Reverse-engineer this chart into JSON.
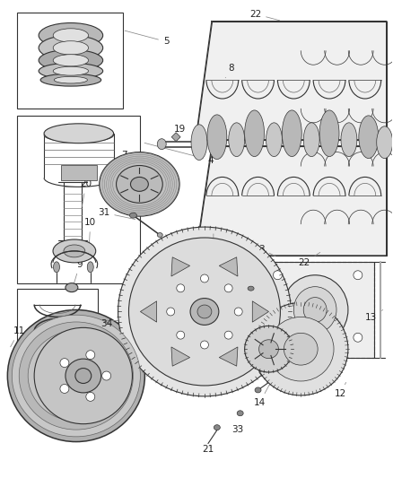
{
  "bg_color": "#ffffff",
  "lc": "#333333",
  "figsize": [
    4.38,
    5.33
  ],
  "dpi": 100,
  "label_fs": 7.5,
  "ann_lc": "#888888",
  "ann_lw": 0.55
}
